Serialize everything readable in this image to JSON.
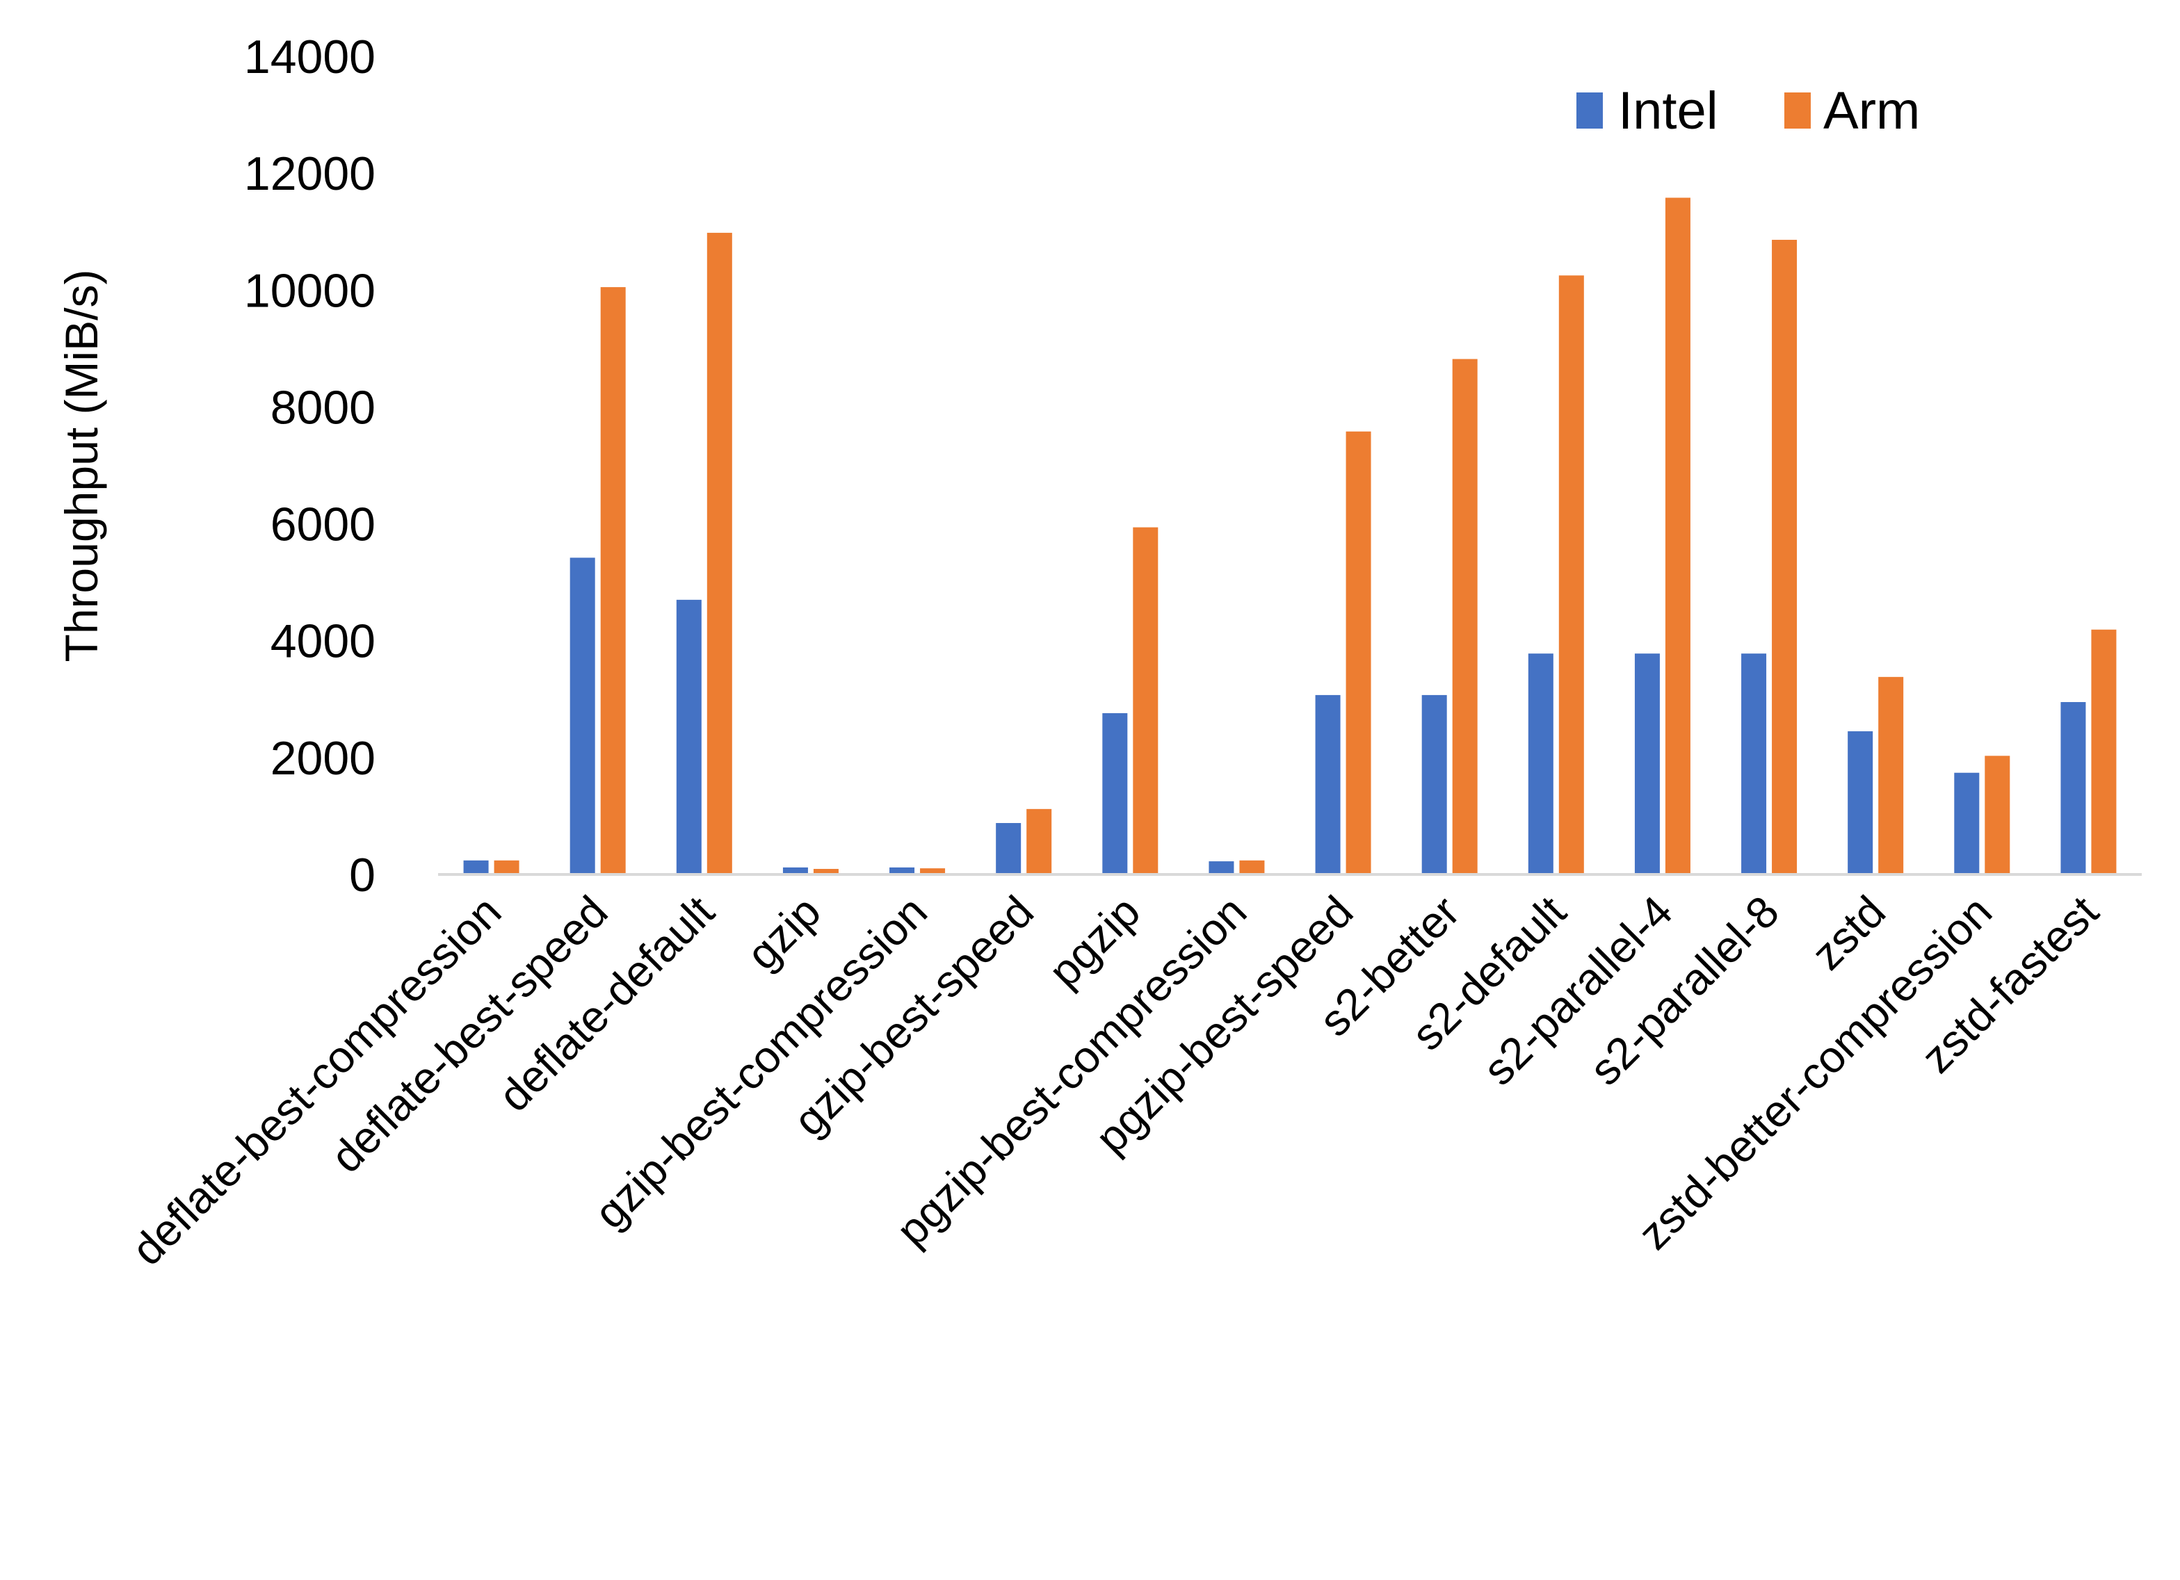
{
  "chart_data": {
    "type": "bar",
    "title": "",
    "xlabel": "",
    "ylabel": "Throughput (MiB/s)",
    "ylim": [
      0,
      14000
    ],
    "yticks": [
      0,
      2000,
      4000,
      6000,
      8000,
      10000,
      12000,
      14000
    ],
    "grid": false,
    "legend_position": "top-right",
    "categories": [
      "deflate-best-compression",
      "deflate-best-speed",
      "deflate-default",
      "gzip",
      "gzip-best-compression",
      "gzip-best-speed",
      "pgzip",
      "pgzip-best-compression",
      "pgzip-best-speed",
      "s2-better",
      "s2-default",
      "s2-parallel-4",
      "s2-parallel-8",
      "zstd",
      "zstd-better-compression",
      "zstd-fastest"
    ],
    "series": [
      {
        "name": "Intel",
        "color": "#4472C4",
        "values": [
          240,
          5420,
          4700,
          120,
          120,
          880,
          2760,
          225,
          3070,
          3070,
          3780,
          3780,
          3780,
          2450,
          1740,
          2950
        ]
      },
      {
        "name": "Arm",
        "color": "#ED7D31",
        "values": [
          240,
          10050,
          10980,
          95,
          105,
          1120,
          5940,
          240,
          7580,
          8820,
          10250,
          11580,
          10860,
          3380,
          2030,
          4190
        ]
      }
    ]
  }
}
